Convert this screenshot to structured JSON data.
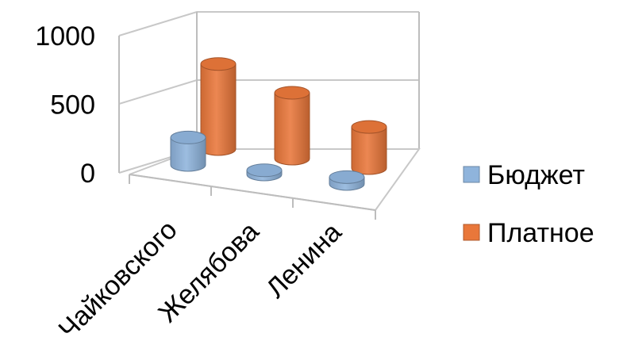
{
  "chart_data": {
    "type": "bar",
    "variant": "3d-cylinder",
    "categories": [
      "Чайковского",
      "Желябова",
      "Ленина"
    ],
    "series": [
      {
        "name": "Бюджет",
        "values": [
          200,
          30,
          50
        ],
        "color": "#8fb4dc"
      },
      {
        "name": "Платное",
        "values": [
          620,
          480,
          300
        ],
        "color": "#e9773a"
      }
    ],
    "yticks": [
      {
        "value": 0,
        "label": "0"
      },
      {
        "value": 500,
        "label": "500"
      },
      {
        "value": 1000,
        "label": "1000"
      }
    ],
    "ylim": [
      0,
      1000
    ],
    "title": "",
    "xlabel": "",
    "ylabel": "",
    "grid": true,
    "legend_position": "right"
  }
}
